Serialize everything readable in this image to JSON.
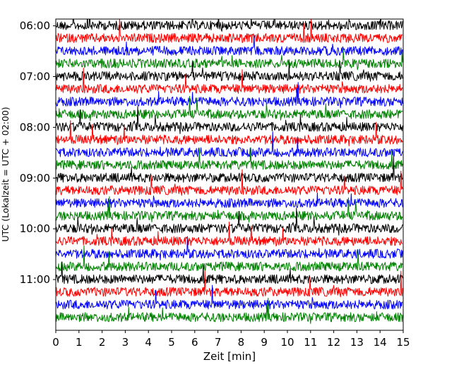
{
  "chart_data": {
    "type": "line",
    "title": "",
    "xlabel": "Zeit  [min]",
    "ylabel": "UTC (Lokalzeit = UTC + 02:00)",
    "xlim": [
      0,
      15
    ],
    "x_ticks": [
      "0",
      "1",
      "2",
      "3",
      "4",
      "5",
      "6",
      "7",
      "8",
      "9",
      "10",
      "11",
      "12",
      "13",
      "14",
      "15"
    ],
    "ylim": [
      "05:52",
      "12:00"
    ],
    "y_ticks": [
      "06:00",
      "07:00",
      "08:00",
      "09:00",
      "10:00",
      "11:00"
    ],
    "y_inverted": true,
    "trace_length_min": 15,
    "trace_colors": [
      "#000000",
      "#ff0000",
      "#0000ff",
      "#008000"
    ],
    "series": [
      {
        "start": "05:52",
        "color": "black"
      },
      {
        "start": "06:07",
        "color": "red"
      },
      {
        "start": "06:22",
        "color": "blue"
      },
      {
        "start": "06:37",
        "color": "green"
      },
      {
        "start": "06:52",
        "color": "black"
      },
      {
        "start": "07:07",
        "color": "red"
      },
      {
        "start": "07:22",
        "color": "blue"
      },
      {
        "start": "07:37",
        "color": "green"
      },
      {
        "start": "07:52",
        "color": "black"
      },
      {
        "start": "08:07",
        "color": "red"
      },
      {
        "start": "08:22",
        "color": "blue"
      },
      {
        "start": "08:37",
        "color": "green"
      },
      {
        "start": "08:52",
        "color": "black"
      },
      {
        "start": "09:07",
        "color": "red"
      },
      {
        "start": "09:22",
        "color": "blue"
      },
      {
        "start": "09:37",
        "color": "green"
      },
      {
        "start": "09:52",
        "color": "black"
      },
      {
        "start": "10:07",
        "color": "red"
      },
      {
        "start": "10:22",
        "color": "blue"
      },
      {
        "start": "10:37",
        "color": "green"
      },
      {
        "start": "10:52",
        "color": "black"
      },
      {
        "start": "11:07",
        "color": "red"
      },
      {
        "start": "11:22",
        "color": "blue"
      },
      {
        "start": "11:37",
        "color": "green"
      }
    ],
    "grid": false,
    "legend": "none"
  }
}
